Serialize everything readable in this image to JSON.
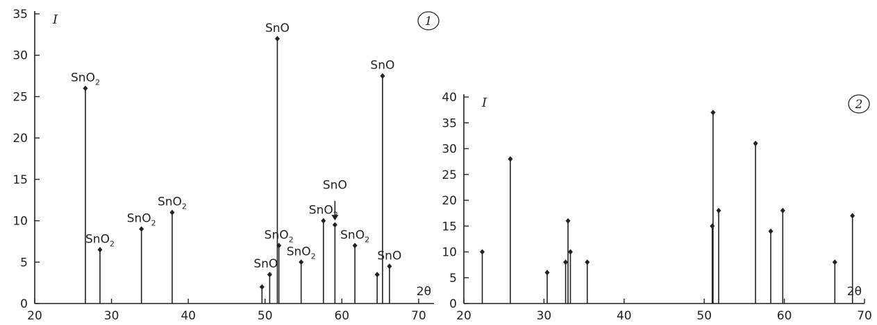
{
  "chart_data": [
    {
      "type": "bar",
      "panel_number": "1",
      "ylabel": "I",
      "xlabel": "2θ",
      "xlim": [
        20,
        72
      ],
      "ylim": [
        0,
        35
      ],
      "xticks": [
        20,
        30,
        40,
        50,
        60,
        70
      ],
      "yticks": [
        0,
        5,
        10,
        15,
        20,
        25,
        30,
        35
      ],
      "points": [
        {
          "x": 26.6,
          "y": 26
        },
        {
          "x": 28.5,
          "y": 6.5
        },
        {
          "x": 33.9,
          "y": 9
        },
        {
          "x": 37.9,
          "y": 11
        },
        {
          "x": 49.6,
          "y": 2
        },
        {
          "x": 50.6,
          "y": 3.5
        },
        {
          "x": 51.6,
          "y": 32
        },
        {
          "x": 51.8,
          "y": 7
        },
        {
          "x": 54.7,
          "y": 5
        },
        {
          "x": 57.6,
          "y": 10
        },
        {
          "x": 59.1,
          "y": 9.5
        },
        {
          "x": 61.7,
          "y": 7
        },
        {
          "x": 64.6,
          "y": 3.5
        },
        {
          "x": 65.3,
          "y": 27.5
        },
        {
          "x": 66.2,
          "y": 4.5
        }
      ],
      "annotations": [
        {
          "text": "SnO",
          "sub": "2",
          "x": 26.6,
          "y": 26
        },
        {
          "text": "SnO",
          "sub": "2",
          "x": 28.5,
          "y": 6.5
        },
        {
          "text": "SnO",
          "sub": "2",
          "x": 33.9,
          "y": 9
        },
        {
          "text": "SnO",
          "sub": "2",
          "x": 37.9,
          "y": 11
        },
        {
          "text": "SnO",
          "sub": "",
          "x": 50.1,
          "y": 3.5
        },
        {
          "text": "SnO",
          "sub": "",
          "x": 51.6,
          "y": 32
        },
        {
          "text": "SnO",
          "sub": "2",
          "x": 51.8,
          "y": 7
        },
        {
          "text": "SnO",
          "sub": "2",
          "x": 54.7,
          "y": 5
        },
        {
          "text": "SnO",
          "sub": "2",
          "x": 57.6,
          "y": 10
        },
        {
          "text": "SnO",
          "sub": "",
          "x": 59.1,
          "y": 13
        },
        {
          "text": "SnO",
          "sub": "2",
          "x": 61.7,
          "y": 7
        },
        {
          "text": "SnO",
          "sub": "",
          "x": 65.3,
          "y": 27.5
        },
        {
          "text": "SnO",
          "sub": "",
          "x": 66.2,
          "y": 4.5
        }
      ]
    },
    {
      "type": "bar",
      "panel_number": "2",
      "ylabel": "I",
      "xlabel": "2θ",
      "xlim": [
        20,
        70
      ],
      "ylim": [
        0,
        40
      ],
      "xticks": [
        20,
        30,
        40,
        50,
        60,
        70
      ],
      "yticks": [
        0,
        5,
        10,
        15,
        20,
        25,
        30,
        35,
        40
      ],
      "points": [
        {
          "x": 22.3,
          "y": 10
        },
        {
          "x": 25.8,
          "y": 28
        },
        {
          "x": 30.4,
          "y": 6
        },
        {
          "x": 32.7,
          "y": 8
        },
        {
          "x": 33.0,
          "y": 16
        },
        {
          "x": 33.3,
          "y": 10
        },
        {
          "x": 35.4,
          "y": 8
        },
        {
          "x": 51.0,
          "y": 15
        },
        {
          "x": 51.1,
          "y": 37
        },
        {
          "x": 51.8,
          "y": 18
        },
        {
          "x": 56.4,
          "y": 31
        },
        {
          "x": 58.3,
          "y": 14
        },
        {
          "x": 59.8,
          "y": 18
        },
        {
          "x": 66.3,
          "y": 8
        },
        {
          "x": 68.5,
          "y": 17
        }
      ]
    }
  ]
}
